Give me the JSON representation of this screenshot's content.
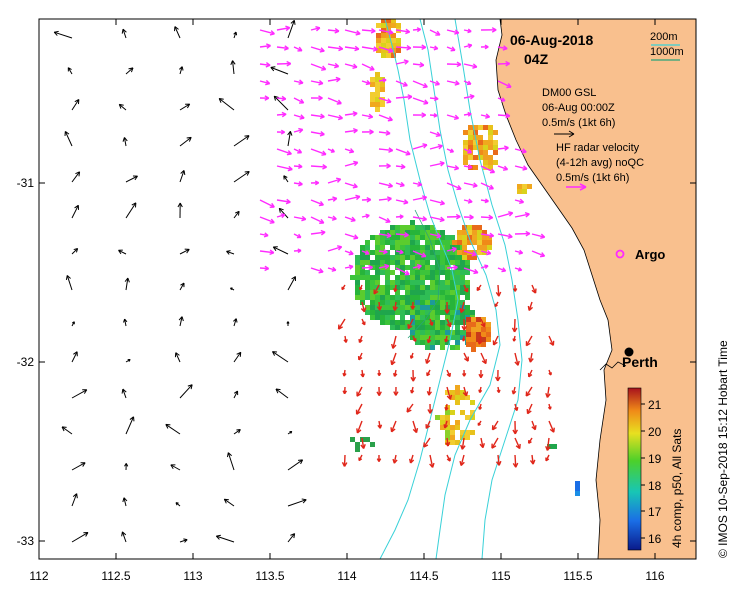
{
  "header": {
    "date": "06-Aug-2018",
    "time": "04Z"
  },
  "contour_legend": {
    "isobath_200": "200m",
    "isobath_1000": "1000m"
  },
  "model_legend": {
    "line1": "DM00 GSL",
    "line2": "06-Aug 00:00Z",
    "scale": "0.5m/s (1kt 6h)"
  },
  "radar_legend": {
    "line1": "HF radar velocity",
    "line2": "(4-12h avg) noQC",
    "scale": "0.5m/s (1kt 6h)"
  },
  "places": {
    "argo": "Argo",
    "perth": "Perth"
  },
  "colorbar": {
    "title": "4h comp, p50, All Sats",
    "ticks": [
      "21",
      "20",
      "19",
      "18",
      "17",
      "16"
    ]
  },
  "credit": "© IMOS 10-Sep-2018 15:12 Hobart Time",
  "axes": {
    "x_ticks": [
      "112",
      "112.5",
      "113",
      "113.5",
      "114",
      "114.5",
      "115",
      "115.5",
      "116"
    ],
    "y_ticks": [
      "-31",
      "-32",
      "-33"
    ]
  },
  "colors": {
    "land": "#f9c08e",
    "bathymetry": "#39d1d8",
    "radar_vectors": "#ff2bff",
    "model_vectors": "#000000",
    "warm_vectors": "#e0261a",
    "isobath_1000": "#2aa37a"
  }
}
